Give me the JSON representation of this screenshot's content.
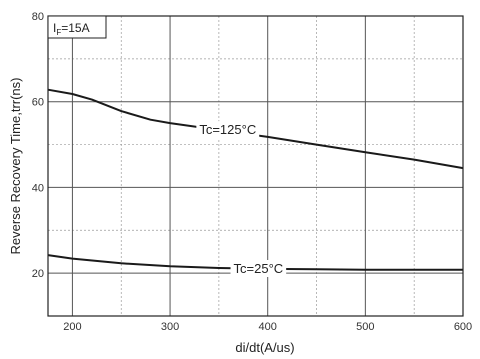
{
  "chart_data": {
    "type": "line",
    "xlabel": "di/dt(A/us)",
    "ylabel": "Reverse Recovery Time,trr(ns)",
    "xlim": [
      175,
      600
    ],
    "ylim": [
      10,
      80
    ],
    "xticks": [
      200,
      300,
      400,
      500,
      600
    ],
    "yticks": [
      20,
      40,
      60,
      80
    ],
    "grid": true,
    "annotation": {
      "main": "I",
      "sub": "F",
      "rest": "=15A"
    },
    "series": [
      {
        "name": "Tc=125°C",
        "x": [
          175,
          200,
          220,
          250,
          280,
          300,
          350,
          400,
          450,
          500,
          550,
          600
        ],
        "y": [
          62.8,
          61.8,
          60.5,
          57.8,
          55.8,
          55.0,
          53.4,
          51.8,
          50.0,
          48.2,
          46.5,
          44.5
        ],
        "color": "#1a1a1a"
      },
      {
        "name": "Tc=25°C",
        "x": [
          175,
          200,
          250,
          300,
          350,
          400,
          450,
          500,
          550,
          600
        ],
        "y": [
          24.2,
          23.4,
          22.3,
          21.6,
          21.2,
          21.0,
          20.9,
          20.8,
          20.8,
          20.8
        ],
        "color": "#1a1a1a"
      }
    ],
    "series_label_positions": [
      {
        "x": 330,
        "y": 53.6
      },
      {
        "x": 365,
        "y": 21.2
      }
    ]
  }
}
